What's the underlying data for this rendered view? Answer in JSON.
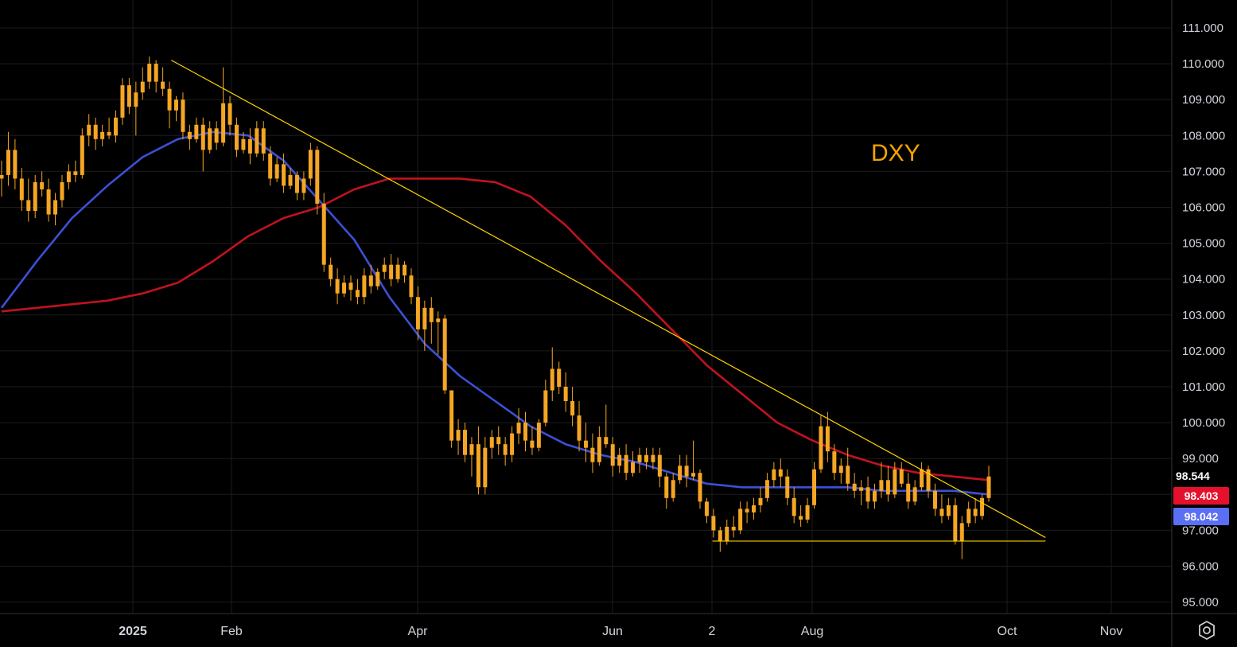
{
  "chart_data": {
    "type": "line",
    "title": "DXY",
    "ylim": [
      94.5,
      111.7
    ],
    "y_ticks": [
      "95.000",
      "96.000",
      "97.000",
      "98.000",
      "99.000",
      "100.000",
      "101.000",
      "102.000",
      "103.000",
      "104.000",
      "105.000",
      "106.000",
      "107.000",
      "108.000",
      "109.000",
      "110.000",
      "111.000"
    ],
    "x_ticks": [
      "2025",
      "Feb",
      "Apr",
      "Jun",
      "2",
      "Aug",
      "Oct",
      "Nov"
    ],
    "candles": [
      [
        106.8,
        107.3,
        106.3,
        106.9
      ],
      [
        106.9,
        108.1,
        106.6,
        107.6
      ],
      [
        107.6,
        107.9,
        106.5,
        106.8
      ],
      [
        106.8,
        107.1,
        105.9,
        106.2
      ],
      [
        106.2,
        106.8,
        105.6,
        105.9
      ],
      [
        105.9,
        106.9,
        105.7,
        106.7
      ],
      [
        106.7,
        107.0,
        106.3,
        106.5
      ],
      [
        106.5,
        106.8,
        105.6,
        105.8
      ],
      [
        105.8,
        106.4,
        105.5,
        106.2
      ],
      [
        106.2,
        106.9,
        106.0,
        106.7
      ],
      [
        106.7,
        107.2,
        106.5,
        107.0
      ],
      [
        107.0,
        107.3,
        106.7,
        106.9
      ],
      [
        106.9,
        108.2,
        106.8,
        108.0
      ],
      [
        108.0,
        108.6,
        107.7,
        108.3
      ],
      [
        108.3,
        108.5,
        107.6,
        107.9
      ],
      [
        107.9,
        108.3,
        107.7,
        108.1
      ],
      [
        108.1,
        108.5,
        107.9,
        108.0
      ],
      [
        108.0,
        108.7,
        107.8,
        108.5
      ],
      [
        108.5,
        109.6,
        108.3,
        109.4
      ],
      [
        109.4,
        109.6,
        108.6,
        108.8
      ],
      [
        108.8,
        109.5,
        108.0,
        109.2
      ],
      [
        109.2,
        109.9,
        109.0,
        109.5
      ],
      [
        109.5,
        110.2,
        109.3,
        110.0
      ],
      [
        110.0,
        110.1,
        109.2,
        109.5
      ],
      [
        109.5,
        109.9,
        109.1,
        109.3
      ],
      [
        109.3,
        109.5,
        108.2,
        108.7
      ],
      [
        108.7,
        109.1,
        108.4,
        109.0
      ],
      [
        109.0,
        109.2,
        107.9,
        108.1
      ],
      [
        108.1,
        108.3,
        107.6,
        107.9
      ],
      [
        107.9,
        108.5,
        107.8,
        108.3
      ],
      [
        108.3,
        108.5,
        107.0,
        107.6
      ],
      [
        107.6,
        108.4,
        107.5,
        108.2
      ],
      [
        108.2,
        108.4,
        107.6,
        107.8
      ],
      [
        107.8,
        109.9,
        107.7,
        108.9
      ],
      [
        108.9,
        109.1,
        108.0,
        108.3
      ],
      [
        108.3,
        108.5,
        107.4,
        107.6
      ],
      [
        107.6,
        108.1,
        107.5,
        107.9
      ],
      [
        107.9,
        108.2,
        107.2,
        107.5
      ],
      [
        107.5,
        108.4,
        107.4,
        108.2
      ],
      [
        108.2,
        108.4,
        107.3,
        107.5
      ],
      [
        107.5,
        107.7,
        106.6,
        106.8
      ],
      [
        106.8,
        107.4,
        106.7,
        107.2
      ],
      [
        107.2,
        107.5,
        106.4,
        106.6
      ],
      [
        106.6,
        107.1,
        106.5,
        106.9
      ],
      [
        106.9,
        107.0,
        106.2,
        106.4
      ],
      [
        106.4,
        107.0,
        106.2,
        106.8
      ],
      [
        106.8,
        107.8,
        106.6,
        107.6
      ],
      [
        107.6,
        107.7,
        105.8,
        106.1
      ],
      [
        106.1,
        106.4,
        104.2,
        104.4
      ],
      [
        104.4,
        104.6,
        103.8,
        104.0
      ],
      [
        104.0,
        104.3,
        103.3,
        103.6
      ],
      [
        103.6,
        104.1,
        103.5,
        103.9
      ],
      [
        103.9,
        104.1,
        103.4,
        103.7
      ],
      [
        103.7,
        104.0,
        103.3,
        103.5
      ],
      [
        103.5,
        104.3,
        103.3,
        104.1
      ],
      [
        104.1,
        104.4,
        103.6,
        103.8
      ],
      [
        103.8,
        104.3,
        103.7,
        104.2
      ],
      [
        104.2,
        104.6,
        104.0,
        104.4
      ],
      [
        104.4,
        104.7,
        103.8,
        104.0
      ],
      [
        104.0,
        104.6,
        103.9,
        104.4
      ],
      [
        104.4,
        104.5,
        103.9,
        104.1
      ],
      [
        104.1,
        104.3,
        103.3,
        103.5
      ],
      [
        103.5,
        103.8,
        102.3,
        102.6
      ],
      [
        102.6,
        103.4,
        102.0,
        103.2
      ],
      [
        103.2,
        103.5,
        102.2,
        102.8
      ],
      [
        102.8,
        103.1,
        101.9,
        102.9
      ],
      [
        102.9,
        103.0,
        100.8,
        100.9
      ],
      [
        100.9,
        100.9,
        99.3,
        99.5
      ],
      [
        99.5,
        100.1,
        99.1,
        99.8
      ],
      [
        99.8,
        100.0,
        98.9,
        99.1
      ],
      [
        99.1,
        99.6,
        98.5,
        99.4
      ],
      [
        99.4,
        99.9,
        98.0,
        98.2
      ],
      [
        98.2,
        99.6,
        98.0,
        99.3
      ],
      [
        99.3,
        99.8,
        99.0,
        99.6
      ],
      [
        99.6,
        99.9,
        99.1,
        99.4
      ],
      [
        99.4,
        99.6,
        98.8,
        99.1
      ],
      [
        99.1,
        99.9,
        98.9,
        99.7
      ],
      [
        99.7,
        100.4,
        99.4,
        100.0
      ],
      [
        100.0,
        100.3,
        99.2,
        99.5
      ],
      [
        99.5,
        99.9,
        99.1,
        99.3
      ],
      [
        99.3,
        100.1,
        99.2,
        100.0
      ],
      [
        100.0,
        101.2,
        99.9,
        100.9
      ],
      [
        100.9,
        102.1,
        100.6,
        101.5
      ],
      [
        101.5,
        101.7,
        100.8,
        101.0
      ],
      [
        101.0,
        101.4,
        100.3,
        100.6
      ],
      [
        100.6,
        101.0,
        99.9,
        100.2
      ],
      [
        100.2,
        100.6,
        99.2,
        99.5
      ],
      [
        99.5,
        100.0,
        98.9,
        99.3
      ],
      [
        99.3,
        99.7,
        98.6,
        98.9
      ],
      [
        98.9,
        99.9,
        98.8,
        99.6
      ],
      [
        99.6,
        100.5,
        99.3,
        99.4
      ],
      [
        99.4,
        99.6,
        98.5,
        98.8
      ],
      [
        98.8,
        99.3,
        98.6,
        99.1
      ],
      [
        99.1,
        99.4,
        98.4,
        98.6
      ],
      [
        98.6,
        99.2,
        98.5,
        98.9
      ],
      [
        98.9,
        99.3,
        98.6,
        99.1
      ],
      [
        99.1,
        99.3,
        98.7,
        98.9
      ],
      [
        98.9,
        99.3,
        98.7,
        99.1
      ],
      [
        99.1,
        99.3,
        98.2,
        98.5
      ],
      [
        98.5,
        98.6,
        97.6,
        97.9
      ],
      [
        97.9,
        98.6,
        97.8,
        98.4
      ],
      [
        98.4,
        99.1,
        98.3,
        98.8
      ],
      [
        98.8,
        99.1,
        98.2,
        98.5
      ],
      [
        98.5,
        99.5,
        98.4,
        98.6
      ],
      [
        98.6,
        98.7,
        97.6,
        97.8
      ],
      [
        97.8,
        97.9,
        97.2,
        97.4
      ],
      [
        97.4,
        97.6,
        96.8,
        97.0
      ],
      [
        97.0,
        97.1,
        96.4,
        96.7
      ],
      [
        96.7,
        97.3,
        96.6,
        97.1
      ],
      [
        97.1,
        97.4,
        96.8,
        97.0
      ],
      [
        97.0,
        97.8,
        96.9,
        97.6
      ],
      [
        97.6,
        97.8,
        97.2,
        97.5
      ],
      [
        97.5,
        97.9,
        97.3,
        97.7
      ],
      [
        97.7,
        98.2,
        97.5,
        97.9
      ],
      [
        97.9,
        98.6,
        97.8,
        98.4
      ],
      [
        98.4,
        98.9,
        98.2,
        98.7
      ],
      [
        98.7,
        99.0,
        98.2,
        98.5
      ],
      [
        98.5,
        98.7,
        97.7,
        97.9
      ],
      [
        97.9,
        98.2,
        97.2,
        97.4
      ],
      [
        97.4,
        97.7,
        97.1,
        97.3
      ],
      [
        97.3,
        97.9,
        97.2,
        97.7
      ],
      [
        97.7,
        98.9,
        97.6,
        98.7
      ],
      [
        98.7,
        100.2,
        98.6,
        99.9
      ],
      [
        99.9,
        100.3,
        98.9,
        99.2
      ],
      [
        99.2,
        99.4,
        98.4,
        98.6
      ],
      [
        98.6,
        99.0,
        98.3,
        98.8
      ],
      [
        98.8,
        99.3,
        98.1,
        98.3
      ],
      [
        98.3,
        98.6,
        97.9,
        98.1
      ],
      [
        98.1,
        98.4,
        97.7,
        98.2
      ],
      [
        98.2,
        98.5,
        97.6,
        97.8
      ],
      [
        97.8,
        98.3,
        97.6,
        98.1
      ],
      [
        98.1,
        98.9,
        97.9,
        98.4
      ],
      [
        98.4,
        98.8,
        97.8,
        98.0
      ],
      [
        98.0,
        98.9,
        97.9,
        98.7
      ],
      [
        98.7,
        98.9,
        98.2,
        98.3
      ],
      [
        98.3,
        98.6,
        97.6,
        97.8
      ],
      [
        97.8,
        98.4,
        97.7,
        98.2
      ],
      [
        98.2,
        98.9,
        98.1,
        98.7
      ],
      [
        98.7,
        98.8,
        97.9,
        98.1
      ],
      [
        98.1,
        98.3,
        97.4,
        97.6
      ],
      [
        97.6,
        98.0,
        97.2,
        97.4
      ],
      [
        97.4,
        97.9,
        97.3,
        97.7
      ],
      [
        97.7,
        97.9,
        96.6,
        96.7
      ],
      [
        96.7,
        97.4,
        96.2,
        97.2
      ],
      [
        97.2,
        97.8,
        97.1,
        97.6
      ],
      [
        97.6,
        97.9,
        97.2,
        97.4
      ],
      [
        97.4,
        98.0,
        97.3,
        97.9
      ],
      [
        97.9,
        98.8,
        97.8,
        98.5
      ]
    ],
    "series": [
      {
        "values": [
          103.1,
          103.2,
          103.3,
          103.4,
          103.6,
          103.9,
          104.5,
          105.2,
          105.7,
          106.0,
          106.5,
          106.8,
          106.8,
          106.8,
          106.7,
          106.3,
          105.5,
          104.5,
          103.6,
          102.6,
          101.6,
          100.8,
          100.0,
          99.5,
          99.1,
          98.8,
          98.6,
          98.5,
          98.4
        ]
      },
      {
        "values": [
          103.2,
          104.5,
          105.7,
          106.6,
          107.4,
          107.9,
          108.1,
          108.0,
          107.3,
          106.2,
          105.1,
          103.5,
          102.2,
          101.3,
          100.6,
          99.9,
          99.4,
          99.1,
          98.9,
          98.6,
          98.3,
          98.2,
          98.2,
          98.2,
          98.2,
          98.1,
          98.1,
          98.1,
          98.0
        ]
      }
    ],
    "trendlines": [
      {
        "from": [
          "2025-01-13",
          110.1
        ],
        "to": [
          "2025-10-13",
          96.8
        ]
      },
      {
        "from": [
          "2025-07-01",
          96.7
        ],
        "to": [
          "2025-10-13",
          96.7
        ]
      }
    ],
    "price_labels": {
      "last": "98.544",
      "red": "98.403",
      "blue": "98.042"
    },
    "colors": {
      "candle": "#f5a623",
      "line_red": "#c1121f",
      "line_blue": "#3b50d6",
      "trend": "#ffd400",
      "text": "#ffffff",
      "grid": "#1c1c1c"
    }
  }
}
